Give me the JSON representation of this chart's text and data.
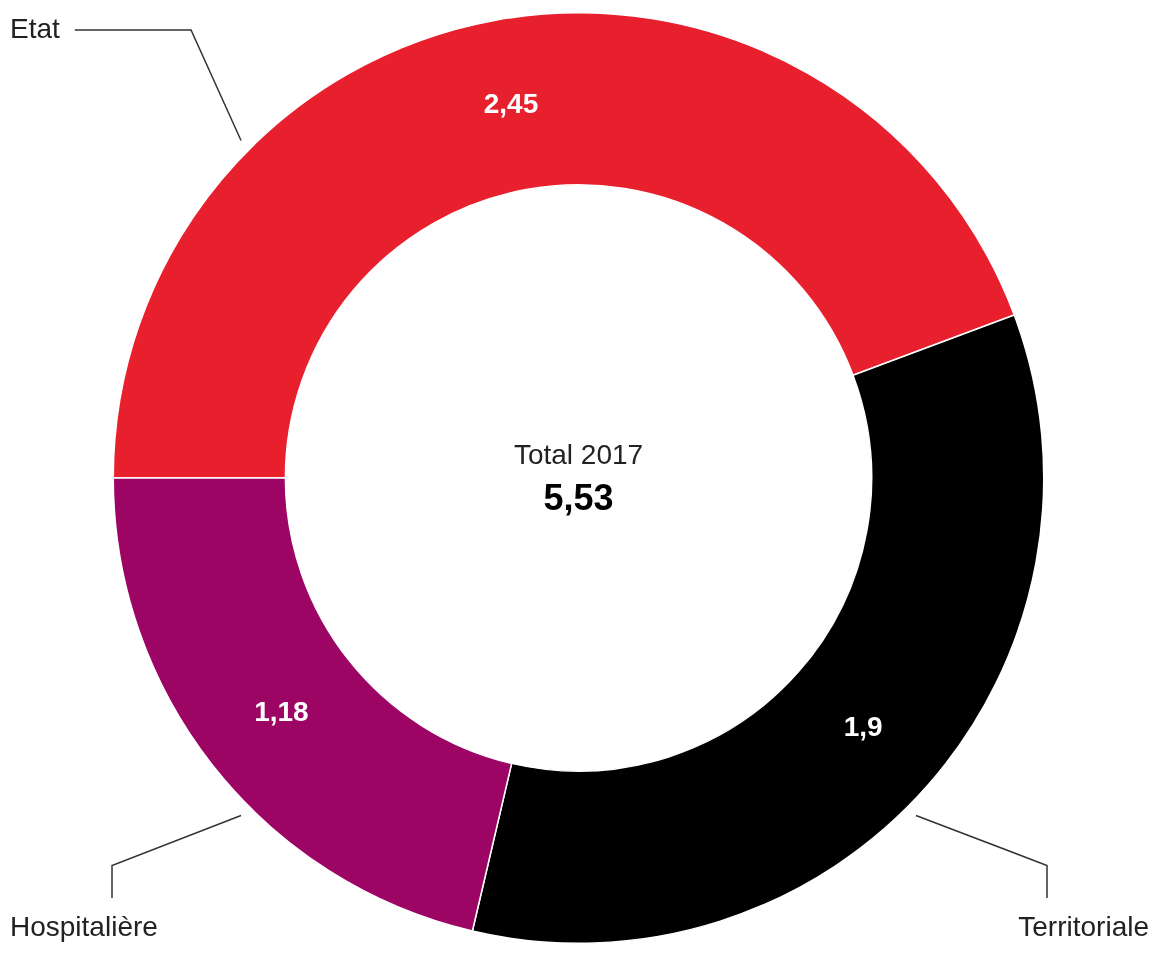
{
  "chart_data": {
    "type": "donut",
    "categories": [
      "Etat",
      "Territoriale",
      "Hospitalière"
    ],
    "values": [
      2.45,
      1.9,
      1.18
    ],
    "value_labels": [
      "2,45",
      "1,9",
      "1,18"
    ],
    "colors": [
      "#e8202e",
      "#000000",
      "#9c0564"
    ],
    "annotations": [
      "Total 2017",
      "5,53"
    ],
    "legend": false
  }
}
